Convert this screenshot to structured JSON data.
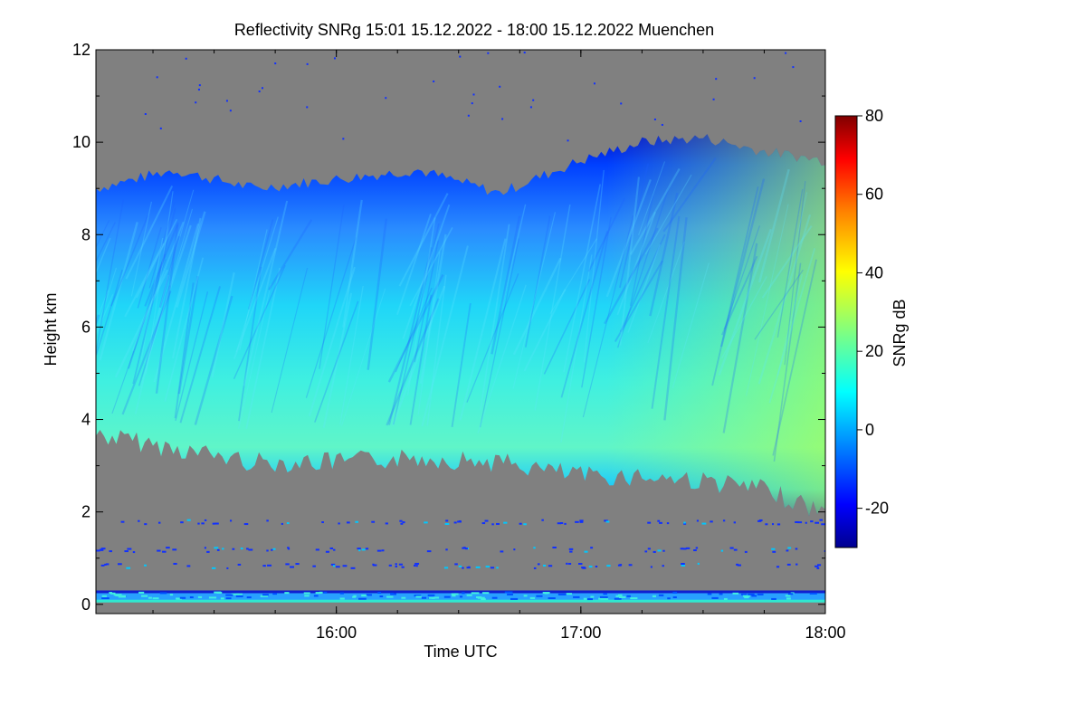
{
  "chart_data": {
    "type": "heatmap",
    "title": "Reflectivity SNRg   15:01 15.12.2022 - 18:00 15.12.2022 Muenchen",
    "xlabel": "Time UTC",
    "ylabel": "Height km",
    "x_range": [
      "15:01",
      "18:00"
    ],
    "xticks": [
      {
        "value": "16:00",
        "label": "16:00"
      },
      {
        "value": "17:00",
        "label": "17:00"
      },
      {
        "value": "18:00",
        "label": "18:00"
      }
    ],
    "ylim": [
      -0.2,
      12.0
    ],
    "yticks": [
      0,
      2,
      4,
      6,
      8,
      10,
      12
    ],
    "colorbar": {
      "label": "SNRg dB",
      "range": [
        -30,
        80
      ],
      "ticks": [
        -20,
        0,
        20,
        40,
        60,
        80
      ],
      "colormap": "jet",
      "stops": [
        "#00008f",
        "#0000ff",
        "#00ffff",
        "#80ff80",
        "#ffff00",
        "#ff8000",
        "#ff0000",
        "#800000"
      ]
    },
    "no_signal_color": "#808080",
    "cloud_layer": {
      "description_series": [
        {
          "name": "cloud_top_km",
          "x": [
            "15:01",
            "15:20",
            "15:40",
            "16:00",
            "16:20",
            "16:40",
            "17:00",
            "17:15",
            "17:30",
            "17:45",
            "18:00"
          ],
          "values": [
            9.0,
            9.4,
            9.0,
            9.2,
            9.4,
            8.9,
            9.6,
            10.0,
            10.1,
            9.8,
            9.6
          ]
        },
        {
          "name": "cloud_base_km",
          "x": [
            "15:01",
            "15:20",
            "15:40",
            "16:00",
            "16:20",
            "16:40",
            "17:00",
            "17:15",
            "17:30",
            "17:45",
            "18:00"
          ],
          "values": [
            3.9,
            3.6,
            3.3,
            3.3,
            3.4,
            3.3,
            3.0,
            3.0,
            2.9,
            2.7,
            2.2
          ]
        },
        {
          "name": "peak_snr_height_km",
          "x": [
            "15:01",
            "16:00",
            "17:00",
            "17:30",
            "18:00"
          ],
          "values": [
            5.0,
            5.0,
            4.8,
            4.5,
            3.5
          ]
        }
      ],
      "peak_snr_db": [
        12,
        13,
        15,
        18,
        25
      ]
    }
  }
}
